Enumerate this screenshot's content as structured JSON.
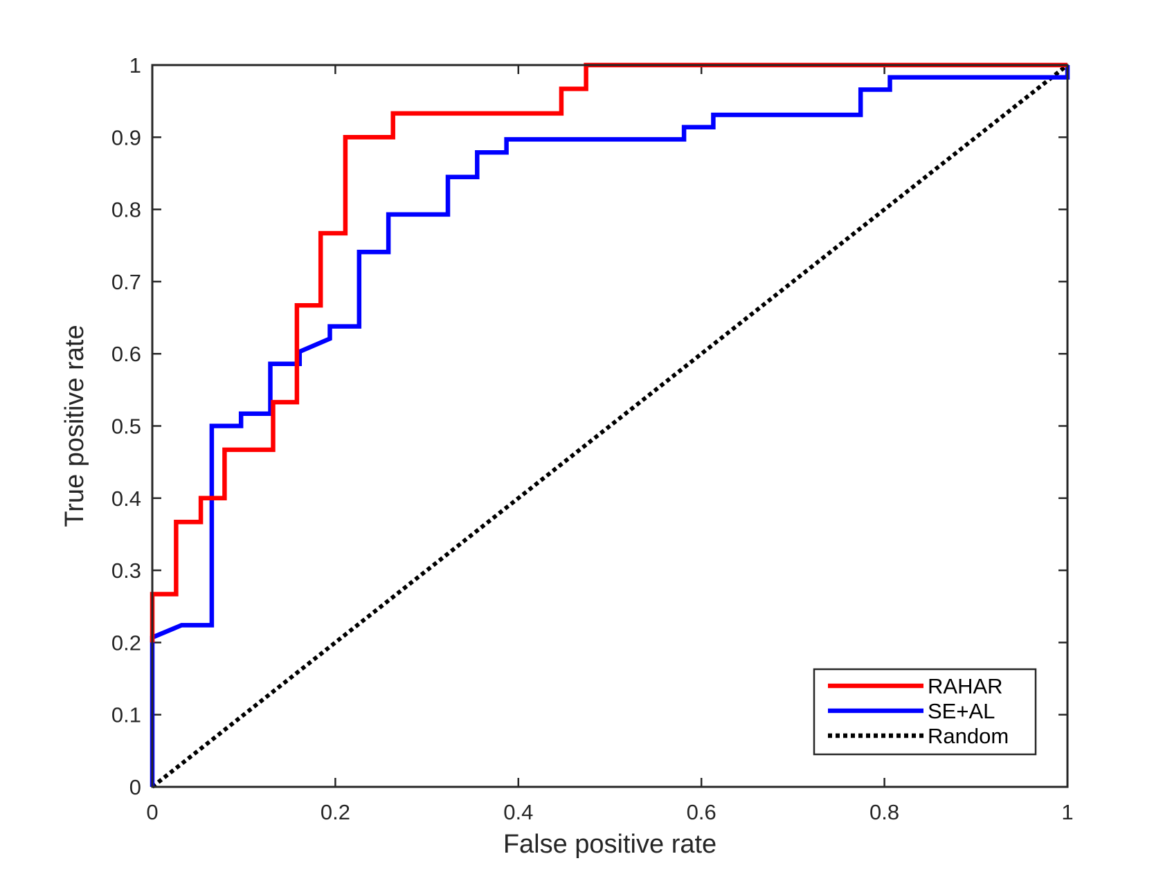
{
  "chart_data": {
    "type": "line",
    "title": "",
    "xlabel": "False positive rate",
    "ylabel": "True positive rate",
    "xlim": [
      0,
      1
    ],
    "ylim": [
      0,
      1
    ],
    "xticks": [
      0,
      0.2,
      0.4,
      0.6,
      0.8,
      1
    ],
    "yticks": [
      0,
      0.1,
      0.2,
      0.3,
      0.4,
      0.5,
      0.6,
      0.7,
      0.8,
      0.9,
      1
    ],
    "xtick_labels": [
      "0",
      "0.2",
      "0.4",
      "0.6",
      "0.8",
      "1"
    ],
    "ytick_labels": [
      "0",
      "0.1",
      "0.2",
      "0.3",
      "0.4",
      "0.5",
      "0.6",
      "0.7",
      "0.8",
      "0.9",
      "1"
    ],
    "grid": false,
    "legend_position": "bottom-right",
    "series": [
      {
        "name": "RAHAR",
        "color": "#ff0000",
        "style": "solid",
        "points": [
          [
            0,
            0.2
          ],
          [
            0,
            0.267
          ],
          [
            0.026,
            0.267
          ],
          [
            0.026,
            0.367
          ],
          [
            0.053,
            0.367
          ],
          [
            0.053,
            0.4
          ],
          [
            0.079,
            0.4
          ],
          [
            0.079,
            0.467
          ],
          [
            0.132,
            0.467
          ],
          [
            0.132,
            0.533
          ],
          [
            0.158,
            0.533
          ],
          [
            0.158,
            0.667
          ],
          [
            0.184,
            0.667
          ],
          [
            0.184,
            0.767
          ],
          [
            0.211,
            0.767
          ],
          [
            0.211,
            0.9
          ],
          [
            0.263,
            0.9
          ],
          [
            0.263,
            0.933
          ],
          [
            0.447,
            0.933
          ],
          [
            0.447,
            0.967
          ],
          [
            0.474,
            0.967
          ],
          [
            0.474,
            1
          ],
          [
            1,
            1
          ]
        ]
      },
      {
        "name": "SE+AL",
        "color": "#0000ff",
        "style": "solid",
        "points": [
          [
            0,
            0
          ],
          [
            0,
            0.207
          ],
          [
            0.032,
            0.224
          ],
          [
            0.065,
            0.224
          ],
          [
            0.065,
            0.5
          ],
          [
            0.097,
            0.5
          ],
          [
            0.097,
            0.517
          ],
          [
            0.129,
            0.517
          ],
          [
            0.129,
            0.586
          ],
          [
            0.161,
            0.586
          ],
          [
            0.161,
            0.603
          ],
          [
            0.194,
            0.621
          ],
          [
            0.194,
            0.638
          ],
          [
            0.226,
            0.638
          ],
          [
            0.226,
            0.741
          ],
          [
            0.258,
            0.741
          ],
          [
            0.258,
            0.793
          ],
          [
            0.323,
            0.793
          ],
          [
            0.323,
            0.845
          ],
          [
            0.355,
            0.845
          ],
          [
            0.355,
            0.879
          ],
          [
            0.387,
            0.879
          ],
          [
            0.387,
            0.897
          ],
          [
            0.581,
            0.897
          ],
          [
            0.581,
            0.914
          ],
          [
            0.613,
            0.914
          ],
          [
            0.613,
            0.931
          ],
          [
            0.774,
            0.931
          ],
          [
            0.774,
            0.966
          ],
          [
            0.806,
            0.966
          ],
          [
            0.806,
            0.983
          ],
          [
            1,
            0.983
          ],
          [
            1,
            1
          ]
        ]
      },
      {
        "name": "Random",
        "color": "#000000",
        "style": "dotted",
        "points": [
          [
            0,
            0
          ],
          [
            1,
            1
          ]
        ]
      }
    ]
  }
}
